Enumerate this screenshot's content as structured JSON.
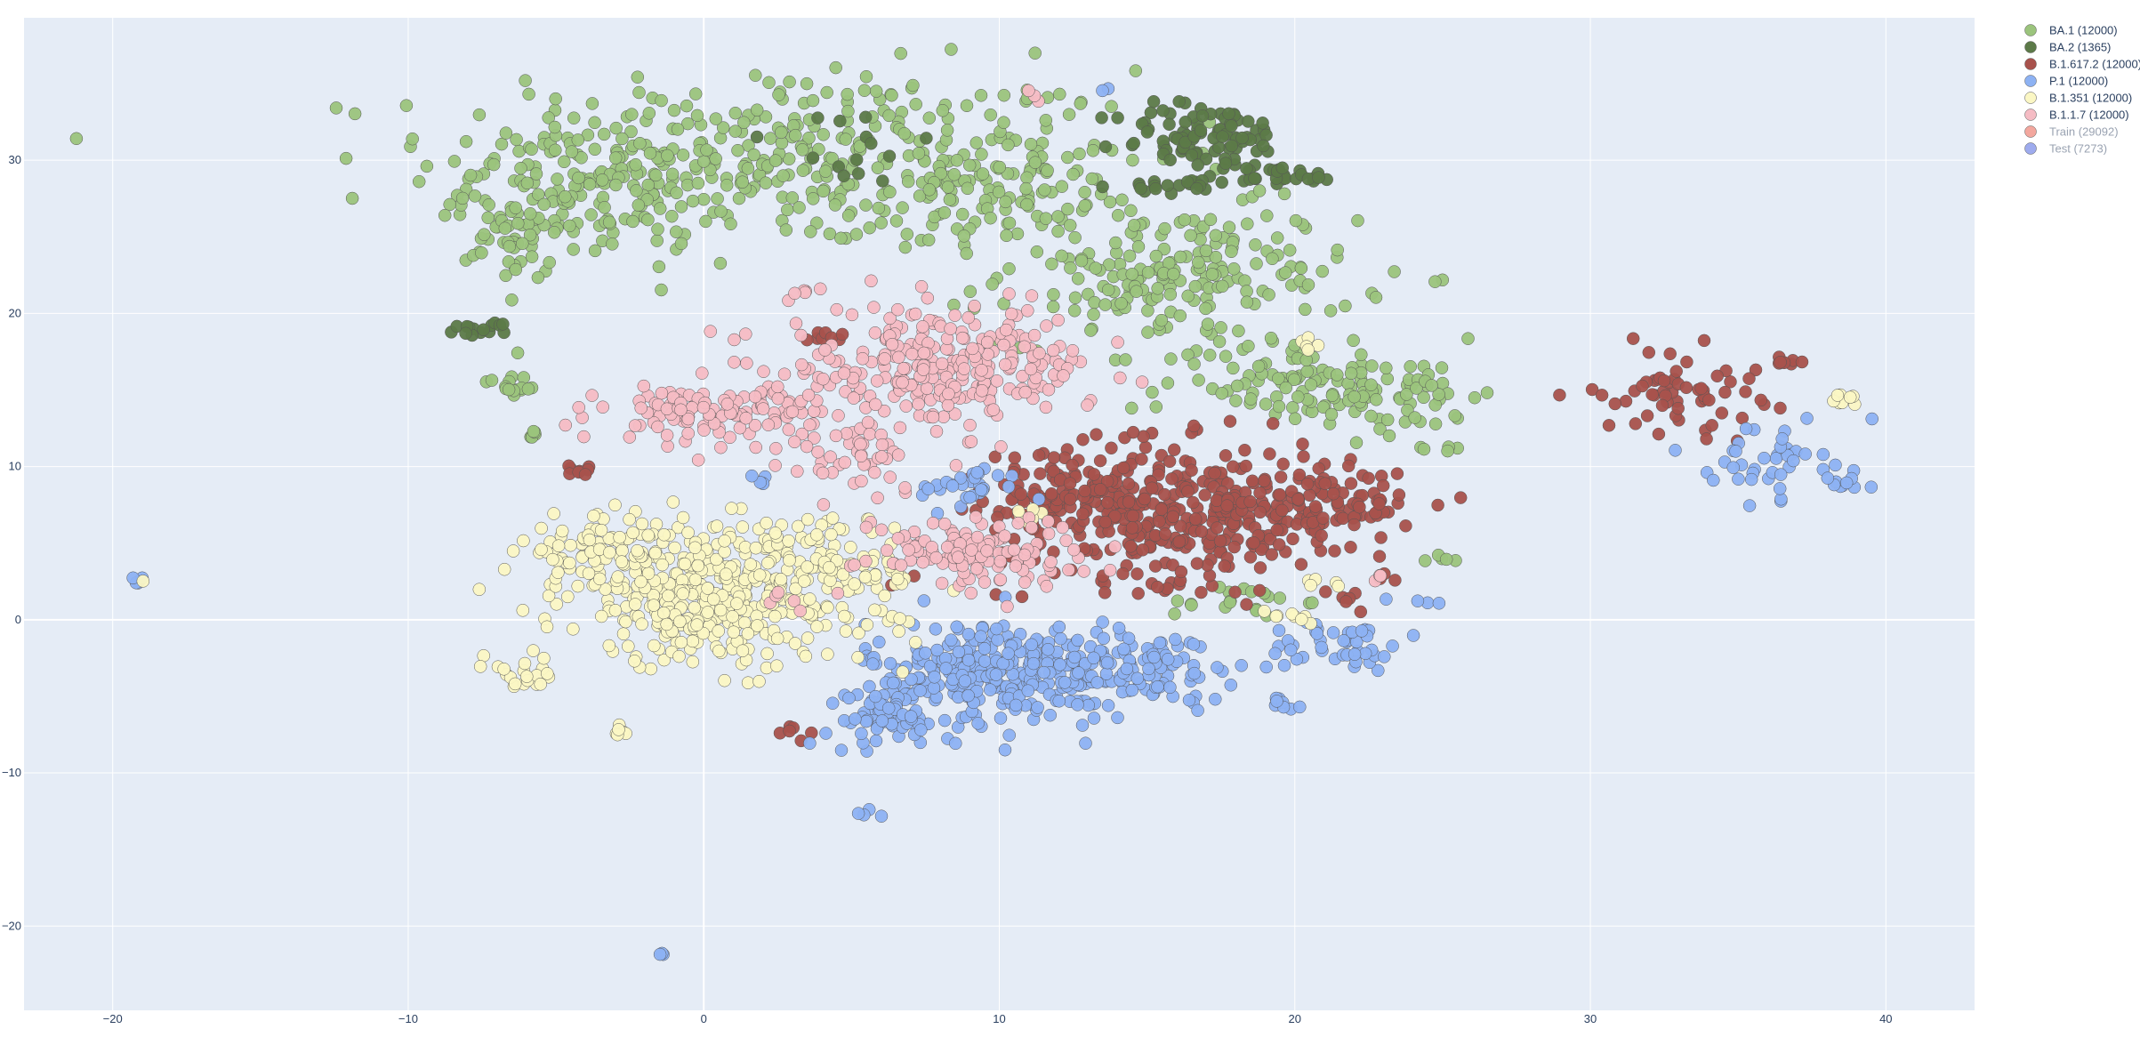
{
  "chart_data": {
    "type": "scatter",
    "title": "",
    "xlabel": "",
    "ylabel": "",
    "xlim": [
      -23,
      43
    ],
    "ylim": [
      -25.5,
      39.3
    ],
    "x_ticks": [
      -20,
      -10,
      0,
      10,
      20,
      30,
      40
    ],
    "y_ticks": [
      -20,
      -10,
      0,
      10,
      20,
      30
    ],
    "grid": true,
    "legend_position": "top-right",
    "series": [
      {
        "name": "BA.1 (12000)",
        "color": "#9bc47c",
        "visible": true,
        "clusters": [
          {
            "x": 3,
            "y": 30,
            "sx": 8,
            "sy": 4,
            "n": 380
          },
          {
            "x": -3.5,
            "y": 28,
            "sx": 3,
            "sy": 3,
            "n": 110
          },
          {
            "x": -6.5,
            "y": 25,
            "sx": 1,
            "sy": 2,
            "n": 40
          },
          {
            "x": 10,
            "y": 28,
            "sx": 2,
            "sy": 2,
            "n": 60
          },
          {
            "x": 16,
            "y": 22.5,
            "sx": 4,
            "sy": 3,
            "n": 200
          },
          {
            "x": 20,
            "y": 15.5,
            "sx": 3,
            "sy": 2,
            "n": 100
          },
          {
            "x": 24,
            "y": 14.5,
            "sx": 1.5,
            "sy": 1.5,
            "n": 40
          },
          {
            "x": -6.5,
            "y": 15.3,
            "sx": 0.7,
            "sy": 0.5,
            "n": 15
          },
          {
            "x": -5.8,
            "y": 12.2,
            "sx": 0.3,
            "sy": 0.3,
            "n": 6
          },
          {
            "x": 18,
            "y": 1.2,
            "sx": 1.5,
            "sy": 0.7,
            "n": 20
          },
          {
            "x": 25.2,
            "y": 3.9,
            "sx": 0.4,
            "sy": 0.3,
            "n": 5
          },
          {
            "x": 25.2,
            "y": 11.2,
            "sx": 0.4,
            "sy": 0.3,
            "n": 5
          }
        ]
      },
      {
        "name": "BA.2 (1365)",
        "color": "#5c7a48",
        "visible": true,
        "clusters": [
          {
            "x": 17,
            "y": 31.5,
            "sx": 2,
            "sy": 1.5,
            "n": 90
          },
          {
            "x": 19.5,
            "y": 29,
            "sx": 1.3,
            "sy": 0.4,
            "n": 25
          },
          {
            "x": 16.5,
            "y": 28.3,
            "sx": 1.5,
            "sy": 0.3,
            "n": 20
          },
          {
            "x": -7.5,
            "y": 19,
            "sx": 0.8,
            "sy": 0.3,
            "n": 15
          },
          {
            "x": 4.5,
            "y": 31,
            "sx": 2.5,
            "sy": 2,
            "n": 14
          }
        ]
      },
      {
        "name": "B.1.617.2 (12000)",
        "color": "#a8524c",
        "visible": true,
        "clusters": [
          {
            "x": 16,
            "y": 7,
            "sx": 4,
            "sy": 3,
            "n": 380
          },
          {
            "x": 12.5,
            "y": 8.5,
            "sx": 1.8,
            "sy": 2,
            "n": 70
          },
          {
            "x": 21,
            "y": 7.5,
            "sx": 2,
            "sy": 1.5,
            "n": 80
          },
          {
            "x": 33,
            "y": 15,
            "sx": 1.8,
            "sy": 1.8,
            "n": 60
          },
          {
            "x": 36.5,
            "y": 17,
            "sx": 0.5,
            "sy": 0.4,
            "n": 8
          },
          {
            "x": -4,
            "y": 9.7,
            "sx": 0.5,
            "sy": 0.3,
            "n": 8
          },
          {
            "x": 4,
            "y": 18.5,
            "sx": 0.6,
            "sy": 0.3,
            "n": 8
          },
          {
            "x": 3.2,
            "y": -7.5,
            "sx": 0.4,
            "sy": 0.4,
            "n": 6
          },
          {
            "x": 23,
            "y": 2.8,
            "sx": 0.3,
            "sy": 0.2,
            "n": 4
          },
          {
            "x": 21.5,
            "y": 1.5,
            "sx": 0.5,
            "sy": 0.3,
            "n": 5
          }
        ]
      },
      {
        "name": "P.1 (12000)",
        "color": "#8db2f3",
        "visible": true,
        "clusters": [
          {
            "x": 10,
            "y": -3.5,
            "sx": 3,
            "sy": 2.3,
            "n": 320
          },
          {
            "x": 6,
            "y": -6.5,
            "sx": 1.2,
            "sy": 1.2,
            "n": 50
          },
          {
            "x": 15,
            "y": -3,
            "sx": 2,
            "sy": 1.5,
            "n": 80
          },
          {
            "x": 9,
            "y": 8.5,
            "sx": 1.2,
            "sy": 1,
            "n": 30
          },
          {
            "x": 21.5,
            "y": -1.5,
            "sx": 1.6,
            "sy": 1.3,
            "n": 45
          },
          {
            "x": 36,
            "y": 10.5,
            "sx": 1.3,
            "sy": 1.6,
            "n": 40
          },
          {
            "x": 38.6,
            "y": 8.9,
            "sx": 0.6,
            "sy": 0.4,
            "n": 10
          },
          {
            "x": -19.2,
            "y": 2.5,
            "sx": 0.3,
            "sy": 0.2,
            "n": 5
          },
          {
            "x": 5.5,
            "y": -12.8,
            "sx": 0.3,
            "sy": 0.3,
            "n": 4
          },
          {
            "x": -1.4,
            "y": -21.8,
            "sx": 0.2,
            "sy": 0.2,
            "n": 3
          },
          {
            "x": 13.5,
            "y": 34.6,
            "sx": 0.2,
            "sy": 0.2,
            "n": 2
          },
          {
            "x": 24.5,
            "y": 1,
            "sx": 0.3,
            "sy": 0.2,
            "n": 3
          },
          {
            "x": 1.8,
            "y": 9,
            "sx": 0.4,
            "sy": 0.4,
            "n": 5
          },
          {
            "x": 19.5,
            "y": -5.5,
            "sx": 0.6,
            "sy": 0.5,
            "n": 8
          }
        ]
      },
      {
        "name": "B.1.351 (12000)",
        "color": "#fbf7c4",
        "visible": true,
        "clusters": [
          {
            "x": 0.5,
            "y": 1.5,
            "sx": 3.5,
            "sy": 3,
            "n": 380
          },
          {
            "x": -3.5,
            "y": 4.5,
            "sx": 1.8,
            "sy": 1.5,
            "n": 90
          },
          {
            "x": 4.5,
            "y": 3,
            "sx": 1.8,
            "sy": 2.5,
            "n": 80
          },
          {
            "x": -6.2,
            "y": -3.5,
            "sx": 0.8,
            "sy": 0.8,
            "n": 20
          },
          {
            "x": -2.8,
            "y": -7.3,
            "sx": 0.4,
            "sy": 0.3,
            "n": 6
          },
          {
            "x": 38.5,
            "y": 14.2,
            "sx": 0.5,
            "sy": 0.3,
            "n": 8
          },
          {
            "x": 20.5,
            "y": 18,
            "sx": 0.4,
            "sy": 0.3,
            "n": 5
          },
          {
            "x": 21,
            "y": 2.2,
            "sx": 0.5,
            "sy": 0.3,
            "n": 5
          },
          {
            "x": 11,
            "y": 7,
            "sx": 0.5,
            "sy": 0.4,
            "n": 6
          },
          {
            "x": 20,
            "y": 0,
            "sx": 0.8,
            "sy": 0.4,
            "n": 8
          },
          {
            "x": -19,
            "y": 2.3,
            "sx": 0.1,
            "sy": 0.1,
            "n": 1
          }
        ]
      },
      {
        "name": "B.1.1.7 (12000)",
        "color": "#f5bcc4",
        "visible": true,
        "clusters": [
          {
            "x": 8,
            "y": 16.5,
            "sx": 3.5,
            "sy": 2.5,
            "n": 280
          },
          {
            "x": 0.5,
            "y": 13.5,
            "sx": 2.5,
            "sy": 1.3,
            "n": 120
          },
          {
            "x": 9,
            "y": 4.5,
            "sx": 2.5,
            "sy": 1.5,
            "n": 120
          },
          {
            "x": 5.5,
            "y": 10.5,
            "sx": 1.5,
            "sy": 1.5,
            "n": 40
          },
          {
            "x": 3.5,
            "y": 21.5,
            "sx": 0.4,
            "sy": 0.3,
            "n": 5
          },
          {
            "x": 11,
            "y": 34,
            "sx": 0.3,
            "sy": 0.3,
            "n": 3
          },
          {
            "x": 23,
            "y": 2.8,
            "sx": 0.3,
            "sy": 0.2,
            "n": 3
          },
          {
            "x": 2.5,
            "y": 1,
            "sx": 0.5,
            "sy": 0.5,
            "n": 5
          }
        ]
      },
      {
        "name": "Train (29092)",
        "color": "#ef8a7e",
        "visible": false,
        "clusters": []
      },
      {
        "name": "Test (7273)",
        "color": "#7e8fe8",
        "visible": false,
        "clusters": []
      }
    ]
  }
}
